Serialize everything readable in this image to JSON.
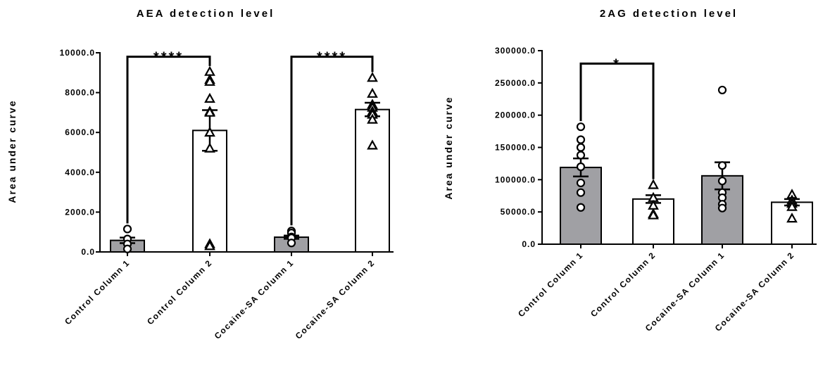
{
  "chart_data": [
    {
      "type": "bar",
      "title": "AEA detection level",
      "ylabel": "Area under curve",
      "ylim": [
        0,
        10000
      ],
      "yticks": [
        "0.0",
        "2000.0",
        "4000.0",
        "6000.0",
        "8000.0",
        "10000.0"
      ],
      "categories": [
        "Control Column 1",
        "Control Column 2",
        "Cocaine-SA Column 1",
        "Cocaine-SA Column 2"
      ],
      "values": [
        580,
        6100,
        740,
        7150
      ],
      "sem": [
        140,
        1020,
        80,
        340
      ],
      "bar_colors": [
        "#a0a0a4",
        "#ffffff",
        "#a0a0a4",
        "#ffffff"
      ],
      "markers": [
        "circle",
        "triangle",
        "circle",
        "triangle"
      ],
      "points": [
        [
          1150,
          650,
          400,
          150
        ],
        [
          9050,
          8650,
          8550,
          7700,
          7050,
          7000,
          6000,
          5200,
          400,
          300
        ],
        [
          1050,
          950,
          750,
          700,
          450
        ],
        [
          8750,
          7950,
          7400,
          7250,
          7050,
          6900,
          6650,
          5350
        ]
      ],
      "significance": [
        {
          "from": 0,
          "to": 1,
          "label": "****",
          "y": 9800
        },
        {
          "from": 2,
          "to": 3,
          "label": "****",
          "y": 9800
        }
      ]
    },
    {
      "type": "bar",
      "title": "2AG detection level",
      "ylabel": "Area under curve",
      "ylim": [
        0,
        300000
      ],
      "yticks": [
        "0.0",
        "50000.0",
        "100000.0",
        "150000.0",
        "200000.0",
        "250000.0",
        "300000.0"
      ],
      "categories": [
        "Control Column 1",
        "Control Column 2",
        "Cocaine-SA Column 1",
        "Cocaine-SA Column 2"
      ],
      "values": [
        119000,
        70000,
        106000,
        65000
      ],
      "sem": [
        14000,
        6000,
        21000,
        5000
      ],
      "bar_colors": [
        "#a0a0a4",
        "#ffffff",
        "#a0a0a4",
        "#ffffff"
      ],
      "markers": [
        "circle",
        "triangle",
        "circle",
        "triangle"
      ],
      "points": [
        [
          182000,
          162000,
          150000,
          138000,
          120000,
          95000,
          80000,
          57000
        ],
        [
          92000,
          72000,
          60000,
          47000,
          45000
        ],
        [
          239000,
          122000,
          98000,
          80000,
          72000,
          62000,
          56000
        ],
        [
          77000,
          68000,
          63000,
          58000,
          40000
        ]
      ],
      "significance": [
        {
          "from": 0,
          "to": 1,
          "label": "*",
          "y": 280000
        }
      ]
    }
  ]
}
